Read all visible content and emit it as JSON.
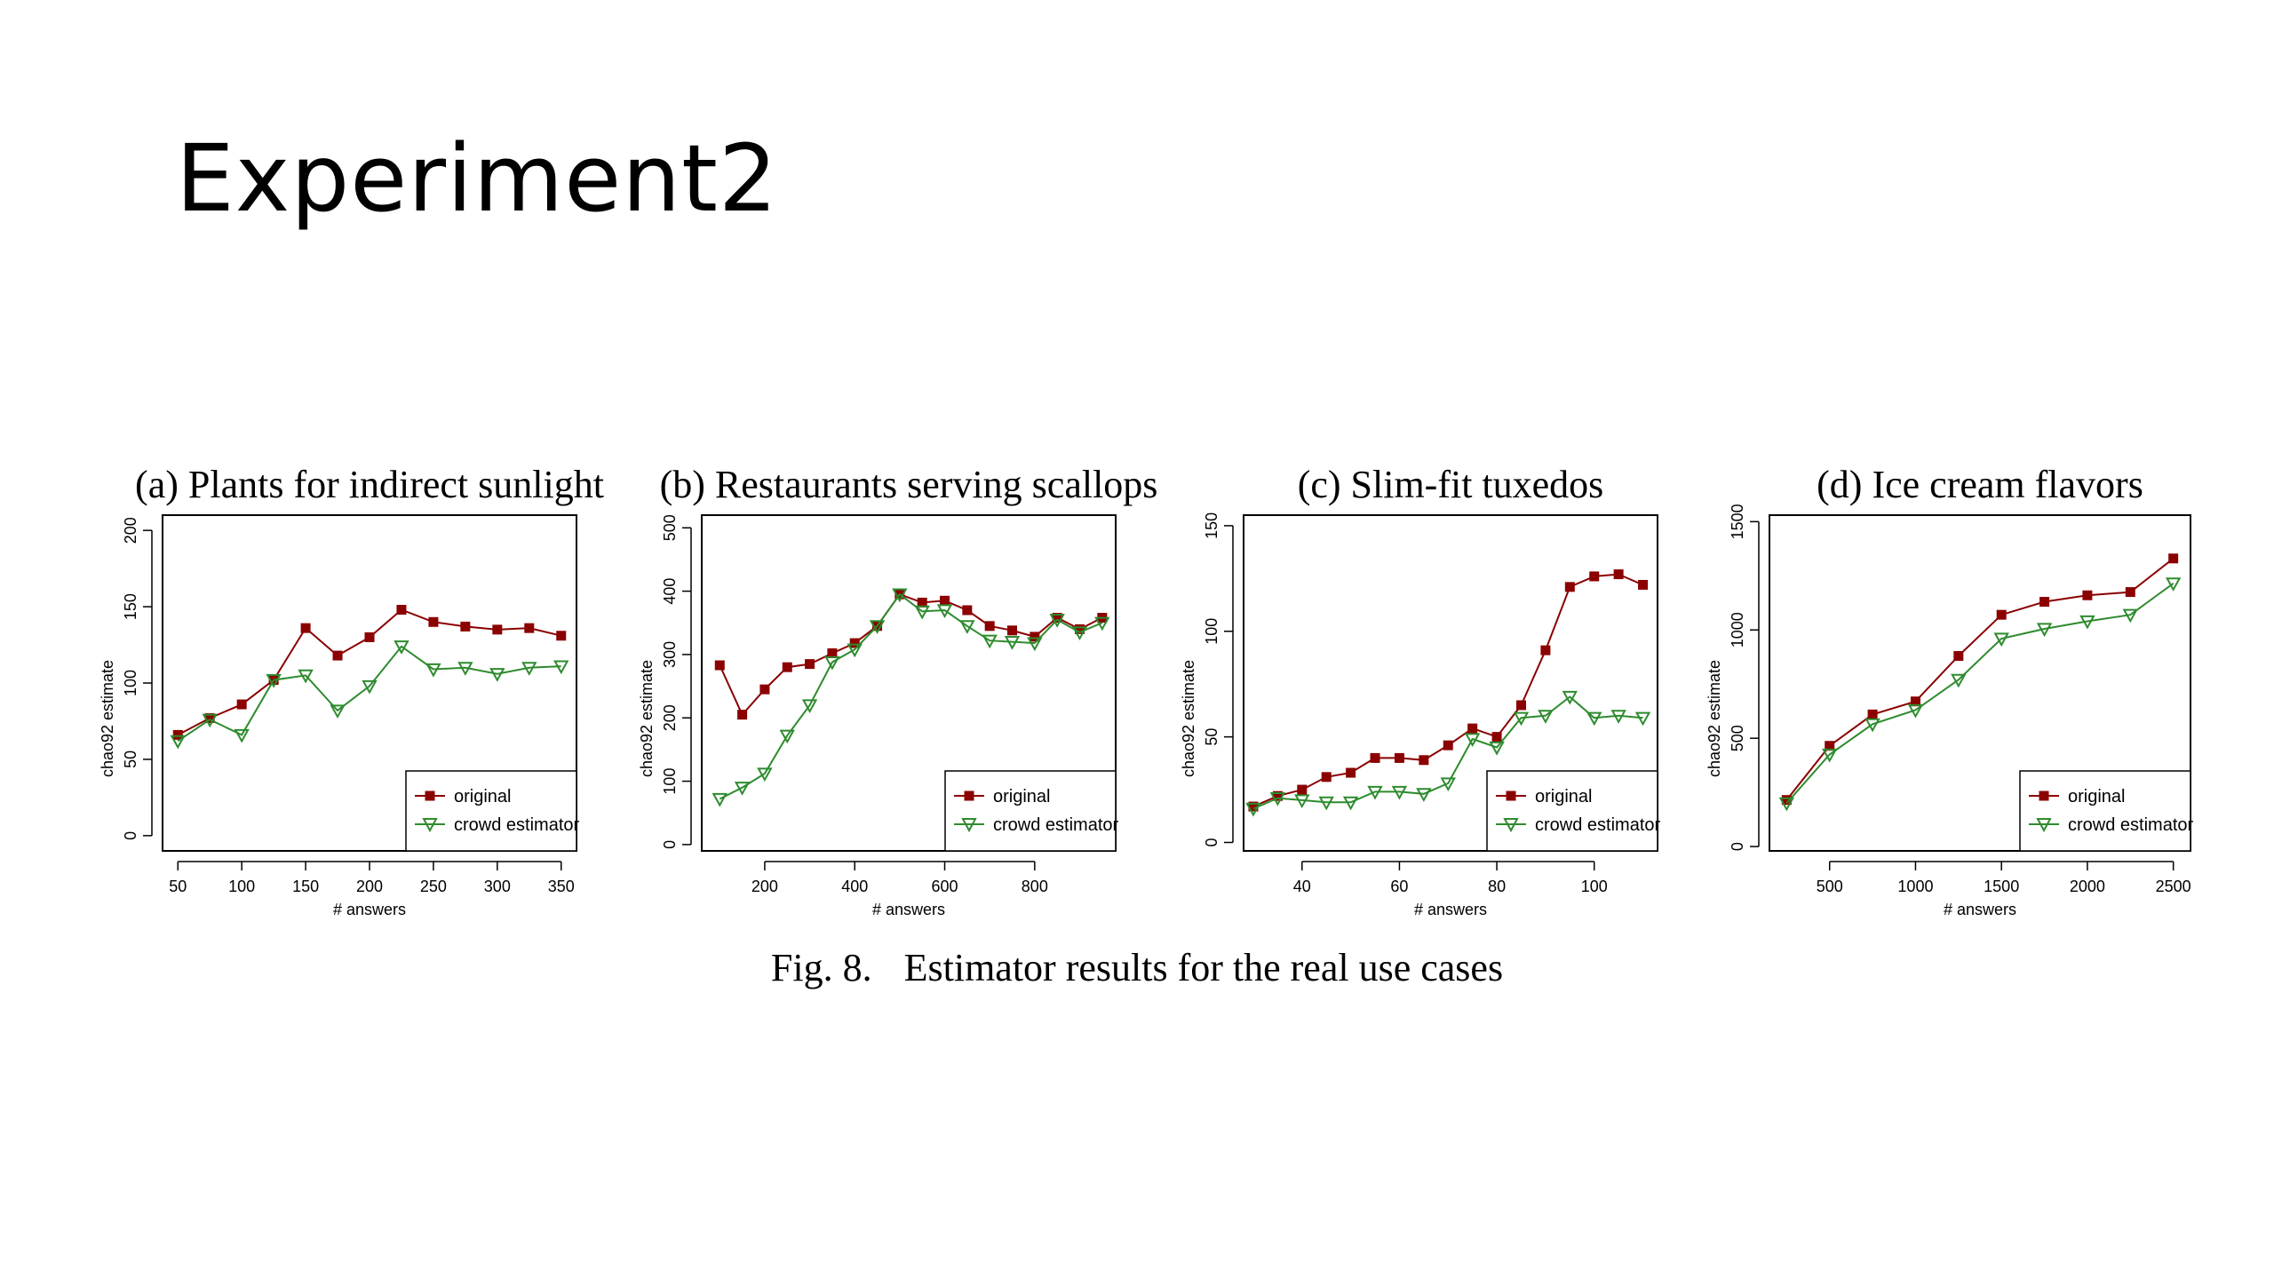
{
  "slide": {
    "title": "Experiment2"
  },
  "caption": {
    "label": "Fig. 8.",
    "text": "Estimator results for the real use cases"
  },
  "colors": {
    "original": "#8b0000",
    "crowd": "#2e8b2e",
    "axis": "#000000"
  },
  "legend": {
    "original": "original",
    "crowd": "crowd estimator"
  },
  "chart_data": [
    {
      "type": "line",
      "title": "(a) Plants for indirect sunlight",
      "xlabel": "# answers",
      "ylabel": "chao92 estimate",
      "xlim": [
        38,
        362
      ],
      "ylim": [
        -10,
        210
      ],
      "xticks": [
        50,
        100,
        150,
        200,
        250,
        300,
        350
      ],
      "yticks": [
        0,
        50,
        100,
        150,
        200
      ],
      "series": [
        {
          "name": "original",
          "x": [
            50,
            75,
            100,
            125,
            150,
            175,
            200,
            225,
            250,
            275,
            300,
            325,
            350
          ],
          "values": [
            66,
            77,
            86,
            102,
            136,
            118,
            130,
            148,
            140,
            137,
            135,
            136,
            131
          ]
        },
        {
          "name": "crowd estimator",
          "x": [
            50,
            75,
            100,
            125,
            150,
            175,
            200,
            225,
            250,
            275,
            300,
            325,
            350
          ],
          "values": [
            62,
            76,
            66,
            102,
            105,
            82,
            98,
            124,
            109,
            110,
            106,
            110,
            111
          ]
        }
      ]
    },
    {
      "type": "line",
      "title": "(b) Restaurants serving scallops",
      "xlabel": "# answers",
      "ylabel": "chao92 estimate",
      "xlim": [
        60,
        980
      ],
      "ylim": [
        -10,
        520
      ],
      "xticks": [
        200,
        400,
        600,
        800
      ],
      "yticks": [
        0,
        100,
        200,
        300,
        400,
        500
      ],
      "series": [
        {
          "name": "original",
          "x": [
            100,
            150,
            200,
            250,
            300,
            350,
            400,
            450,
            500,
            550,
            600,
            650,
            700,
            750,
            800,
            850,
            900,
            950
          ],
          "values": [
            283,
            205,
            245,
            280,
            285,
            302,
            318,
            345,
            395,
            382,
            385,
            370,
            345,
            338,
            328,
            358,
            340,
            358
          ]
        },
        {
          "name": "crowd estimator",
          "x": [
            100,
            150,
            200,
            250,
            300,
            350,
            400,
            450,
            500,
            550,
            600,
            650,
            700,
            750,
            800,
            850,
            900,
            950
          ],
          "values": [
            72,
            90,
            112,
            172,
            220,
            288,
            308,
            345,
            395,
            368,
            370,
            345,
            322,
            320,
            318,
            355,
            335,
            350
          ]
        }
      ]
    },
    {
      "type": "line",
      "title": "(c) Slim-fit tuxedos",
      "xlabel": "# answers",
      "ylabel": "chao92 estimate",
      "xlim": [
        28,
        113
      ],
      "ylim": [
        -4,
        155
      ],
      "xticks": [
        40,
        60,
        80,
        100
      ],
      "yticks": [
        0,
        50,
        100,
        150
      ],
      "series": [
        {
          "name": "original",
          "x": [
            30,
            35,
            40,
            45,
            50,
            55,
            60,
            65,
            70,
            75,
            80,
            85,
            90,
            95,
            100,
            105,
            110
          ],
          "values": [
            17,
            22,
            25,
            31,
            33,
            40,
            40,
            39,
            46,
            54,
            50,
            65,
            91,
            121,
            126,
            127,
            122
          ]
        },
        {
          "name": "crowd estimator",
          "x": [
            30,
            35,
            40,
            45,
            50,
            55,
            60,
            65,
            70,
            75,
            80,
            85,
            90,
            95,
            100,
            105,
            110
          ],
          "values": [
            16,
            21,
            20,
            19,
            19,
            24,
            24,
            23,
            28,
            49,
            45,
            59,
            60,
            69,
            59,
            60,
            59
          ]
        }
      ]
    },
    {
      "type": "line",
      "title": "(d) Ice cream flavors",
      "xlabel": "# answers",
      "ylabel": "chao92 estimate",
      "xlim": [
        150,
        2600
      ],
      "ylim": [
        -20,
        1530
      ],
      "xticks": [
        500,
        1000,
        1500,
        2000,
        2500
      ],
      "yticks": [
        0,
        500,
        1000,
        1500
      ],
      "series": [
        {
          "name": "original",
          "x": [
            250,
            500,
            750,
            1000,
            1250,
            1500,
            1750,
            2000,
            2250,
            2500
          ],
          "values": [
            215,
            465,
            610,
            670,
            880,
            1070,
            1130,
            1160,
            1175,
            1330
          ]
        },
        {
          "name": "crowd estimator",
          "x": [
            250,
            500,
            750,
            1000,
            1250,
            1500,
            1750,
            2000,
            2250,
            2500
          ],
          "values": [
            200,
            425,
            565,
            630,
            770,
            960,
            1005,
            1040,
            1070,
            1215
          ]
        }
      ]
    }
  ]
}
